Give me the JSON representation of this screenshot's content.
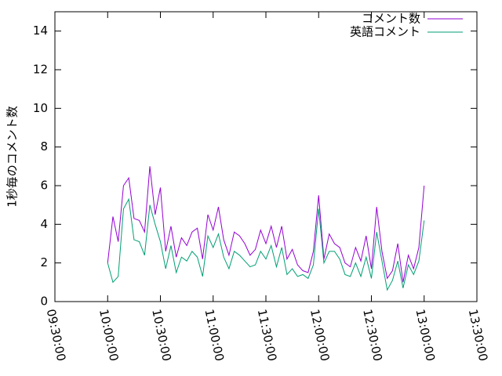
{
  "chart_data": {
    "type": "line",
    "y_label": "1秒毎のコメント数",
    "x": [
      "10:00:00",
      "10:03:00",
      "10:06:00",
      "10:09:00",
      "10:12:00",
      "10:15:00",
      "10:18:00",
      "10:21:00",
      "10:24:00",
      "10:27:00",
      "10:30:00",
      "10:33:00",
      "10:36:00",
      "10:39:00",
      "10:42:00",
      "10:45:00",
      "10:48:00",
      "10:51:00",
      "10:54:00",
      "10:57:00",
      "11:00:00",
      "11:03:00",
      "11:06:00",
      "11:09:00",
      "11:12:00",
      "11:15:00",
      "11:18:00",
      "11:21:00",
      "11:24:00",
      "11:27:00",
      "11:30:00",
      "11:33:00",
      "11:36:00",
      "11:39:00",
      "11:42:00",
      "11:45:00",
      "11:48:00",
      "11:51:00",
      "11:54:00",
      "11:57:00",
      "12:00:00",
      "12:03:00",
      "12:06:00",
      "12:09:00",
      "12:12:00",
      "12:15:00",
      "12:18:00",
      "12:21:00",
      "12:24:00",
      "12:27:00",
      "12:30:00",
      "12:33:00",
      "12:36:00",
      "12:39:00",
      "12:42:00",
      "12:45:00",
      "12:48:00",
      "12:51:00",
      "12:54:00",
      "12:57:00",
      "13:00:00"
    ],
    "series": [
      {
        "name": "コメント数",
        "color": "#9400d3",
        "values": [
          2.0,
          4.4,
          3.1,
          6.0,
          6.4,
          4.3,
          4.2,
          3.6,
          7.0,
          4.5,
          5.9,
          2.6,
          3.9,
          2.3,
          3.3,
          2.9,
          3.6,
          3.8,
          2.2,
          4.5,
          3.7,
          4.9,
          3.2,
          2.4,
          3.6,
          3.4,
          3.0,
          2.4,
          2.7,
          3.7,
          3.0,
          3.9,
          2.8,
          3.9,
          2.2,
          2.7,
          1.9,
          1.6,
          1.5,
          2.6,
          5.5,
          2.2,
          3.5,
          3.0,
          2.8,
          2.0,
          1.8,
          2.8,
          2.1,
          3.4,
          1.7,
          4.9,
          2.6,
          1.2,
          1.6,
          3.0,
          1.0,
          2.4,
          1.7,
          2.8,
          6.0
        ]
      },
      {
        "name": "英語コメント",
        "color": "#009e73",
        "values": [
          2.0,
          1.0,
          1.3,
          4.8,
          5.3,
          3.2,
          3.1,
          2.4,
          5.0,
          4.0,
          3.1,
          1.7,
          2.9,
          1.5,
          2.3,
          2.1,
          2.6,
          2.3,
          1.3,
          3.4,
          2.8,
          3.5,
          2.3,
          1.7,
          2.6,
          2.4,
          2.1,
          1.8,
          1.9,
          2.6,
          2.2,
          2.9,
          1.8,
          2.8,
          1.4,
          1.7,
          1.3,
          1.4,
          1.2,
          1.9,
          4.8,
          2.0,
          2.6,
          2.6,
          2.2,
          1.4,
          1.3,
          2.0,
          1.3,
          2.3,
          1.2,
          3.6,
          2.1,
          0.6,
          1.1,
          2.1,
          0.7,
          1.9,
          1.4,
          2.1,
          4.2
        ]
      }
    ],
    "xlim": [
      "09:30:00",
      "13:30:00"
    ],
    "xticks": [
      "09:30:00",
      "10:00:00",
      "10:30:00",
      "11:00:00",
      "11:30:00",
      "12:00:00",
      "12:30:00",
      "13:00:00",
      "13:30:00"
    ],
    "ylim": [
      0,
      15
    ],
    "yticks": [
      0,
      2,
      4,
      6,
      8,
      10,
      12,
      14
    ],
    "grid": false,
    "legend": "top-right"
  }
}
